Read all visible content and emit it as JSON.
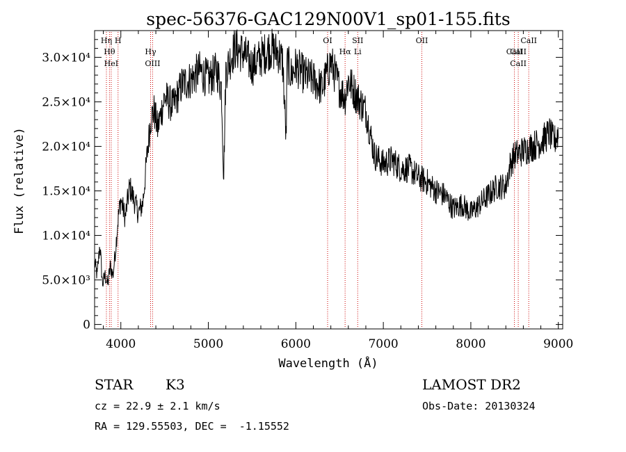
{
  "chart_data": {
    "type": "line",
    "title": "spec-56376-GAC129N00V1_sp01-155.fits",
    "xlabel": "Wavelength (Å)",
    "ylabel": "Flux (relative)",
    "xlim": [
      3700,
      9050
    ],
    "ylim": [
      -500,
      33000
    ],
    "xticks": [
      4000,
      5000,
      6000,
      7000,
      8000,
      9000
    ],
    "yticks": [
      {
        "value": 0,
        "label": "0"
      },
      {
        "value": 5000,
        "label": "5.0×10³"
      },
      {
        "value": 10000,
        "label": "1.0×10⁴"
      },
      {
        "value": 15000,
        "label": "1.5×10⁴"
      },
      {
        "value": 20000,
        "label": "2.0×10⁴"
      },
      {
        "value": 25000,
        "label": "2.5×10⁴"
      },
      {
        "value": 30000,
        "label": "3.0×10⁴"
      }
    ],
    "grid": false,
    "series_color": "#000000",
    "line_marker_color": "#cc0000",
    "spectrum": {
      "x": [
        3700,
        3730,
        3760,
        3790,
        3820,
        3850,
        3880,
        3910,
        3940,
        3970,
        4000,
        4050,
        4100,
        4150,
        4200,
        4250,
        4300,
        4340,
        4380,
        4420,
        4500,
        4600,
        4700,
        4800,
        4900,
        5000,
        5100,
        5150,
        5175,
        5200,
        5300,
        5400,
        5500,
        5600,
        5700,
        5800,
        5850,
        5890,
        5900,
        5950,
        6000,
        6100,
        6200,
        6300,
        6400,
        6500,
        6563,
        6600,
        6700,
        6800,
        6900,
        7000,
        7100,
        7200,
        7300,
        7400,
        7500,
        7600,
        7700,
        7800,
        7900,
        8000,
        8100,
        8200,
        8300,
        8400,
        8450,
        8500,
        8600,
        8700,
        8800,
        8900,
        8950,
        9000
      ],
      "y": [
        7000,
        5500,
        9000,
        4500,
        5500,
        4500,
        6500,
        5500,
        8500,
        12000,
        14000,
        12000,
        15500,
        14000,
        12500,
        13500,
        19000,
        23000,
        24000,
        22000,
        25500,
        24500,
        27000,
        27500,
        28500,
        27500,
        28500,
        26500,
        16500,
        28500,
        31000,
        30500,
        29000,
        30000,
        31000,
        30500,
        29500,
        20500,
        29500,
        28000,
        29000,
        28000,
        27500,
        26500,
        29500,
        26500,
        25500,
        27500,
        25500,
        24000,
        19000,
        18000,
        18500,
        17500,
        17500,
        16500,
        16000,
        15000,
        14500,
        13000,
        13500,
        12500,
        13500,
        14500,
        15500,
        15500,
        18000,
        19000,
        19500,
        20000,
        20500,
        21500,
        20500,
        21500
      ]
    },
    "line_markers": [
      {
        "x": 3835,
        "labels": [
          "Hη"
        ]
      },
      {
        "x": 3870,
        "labels": [
          "Hθ"
        ]
      },
      {
        "x": 3890,
        "labels": [
          "HeI"
        ]
      },
      {
        "x": 3968,
        "labels": [
          "H"
        ]
      },
      {
        "x": 4340,
        "labels": [
          "Hγ"
        ]
      },
      {
        "x": 4363,
        "labels": [
          "OIII"
        ]
      },
      {
        "x": 6363,
        "labels": [
          "OI"
        ]
      },
      {
        "x": 6563,
        "labels": [
          "Hα"
        ]
      },
      {
        "x": 6707,
        "labels": [
          "SII",
          "Li"
        ]
      },
      {
        "x": 7440,
        "labels": [
          "OII"
        ]
      },
      {
        "x": 8498,
        "labels": [
          "CaII"
        ]
      },
      {
        "x": 8542,
        "labels": [
          "CaII",
          "CaII"
        ]
      },
      {
        "x": 8662,
        "labels": [
          "CaII"
        ]
      }
    ],
    "annotations": {
      "object_class": "STAR",
      "subclass": "K3",
      "survey": "LAMOST DR2",
      "redshift": "cz = 22.9 ± 2.1 km/s",
      "obs_date": "Obs-Date: 20130324",
      "coords": "RA = 129.55503, DEC =  -1.15552"
    }
  }
}
